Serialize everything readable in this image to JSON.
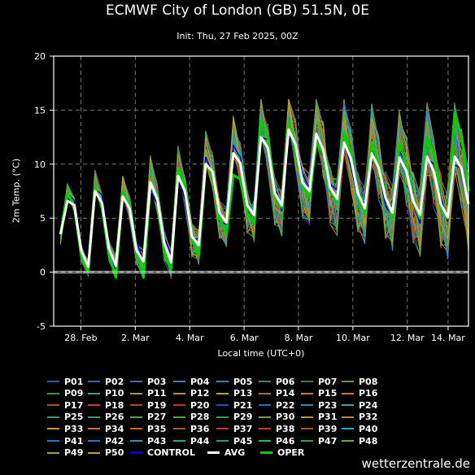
{
  "chart_data": {
    "type": "line",
    "title": "ECMWF City of London (GB) 51.5N, 0E",
    "subtitle": "Init: Thu, 27 Feb 2025, 00Z",
    "xlabel": "Local time (UTC+0)",
    "ylabel": "2m Temp. (°C)",
    "ylim": [
      -5,
      20
    ],
    "yticks": [
      -5,
      0,
      5,
      10,
      15,
      20
    ],
    "xlim_days": [
      0,
      15.25
    ],
    "x_unit": "days from Thu, 27 Feb 2025, 00Z",
    "xticks": [
      {
        "day": 1,
        "label": "28. Feb"
      },
      {
        "day": 3,
        "label": "2. Mar"
      },
      {
        "day": 5,
        "label": "4. Mar"
      },
      {
        "day": 7,
        "label": "6. Mar"
      },
      {
        "day": 9,
        "label": "8. Mar"
      },
      {
        "day": 11,
        "label": "10. Mar"
      },
      {
        "day": 13,
        "label": "12. Mar"
      },
      {
        "day": 14.5,
        "label": "14. Mar"
      }
    ],
    "grid": true,
    "zero_line": true,
    "series_names": [
      "P01",
      "P02",
      "P03",
      "P04",
      "P05",
      "P06",
      "P07",
      "P08",
      "P09",
      "P10",
      "P11",
      "P12",
      "P13",
      "P14",
      "P15",
      "P16",
      "P17",
      "P18",
      "P19",
      "P20",
      "P21",
      "P22",
      "P23",
      "P24",
      "P25",
      "P26",
      "P27",
      "P28",
      "P29",
      "P30",
      "P31",
      "P32",
      "P33",
      "P34",
      "P35",
      "P36",
      "P37",
      "P38",
      "P39",
      "P40",
      "P41",
      "P42",
      "P43",
      "P44",
      "P45",
      "P46",
      "P47",
      "P48",
      "P49",
      "P50",
      "CONTROL",
      "AVG",
      "OPER"
    ],
    "legend_colors": [
      "#1f5fa8",
      "#2f5fbf",
      "#3a6ac0",
      "#3d7fb8",
      "#2d8aa0",
      "#2d8f6a",
      "#1e8a3c",
      "#4aa63a",
      "#2e9a3a",
      "#3aa84c",
      "#a8a030",
      "#c09030",
      "#c8a020",
      "#b07020",
      "#d07a28",
      "#c87a30",
      "#b04a20",
      "#c0402a",
      "#b8402a",
      "#c02e2e",
      "#2a4ab8",
      "#2a6ab8",
      "#2a8ab0",
      "#3aa0b8",
      "#2aa070",
      "#30a060",
      "#40b040",
      "#50a838",
      "#30a050",
      "#80a030",
      "#a8a030",
      "#b09030",
      "#c0a020",
      "#c08018",
      "#b07028",
      "#a06030",
      "#b04040",
      "#c03a30",
      "#a05a3a",
      "#3aa0c0",
      "#2a7ac0",
      "#3a6ab8",
      "#3a8ab8",
      "#30a090",
      "#20a070",
      "#30b060",
      "#40a040",
      "#60b038",
      "#a0a030",
      "#c0a030",
      "#0000d0",
      "#ffffff",
      "#00d000"
    ],
    "avg": [
      3.5,
      6.6,
      6.2,
      2.0,
      0.5,
      7.5,
      6.4,
      2.2,
      0.6,
      7.0,
      5.9,
      2.0,
      1.0,
      8.3,
      6.8,
      2.7,
      0.9,
      8.9,
      7.5,
      3.3,
      2.5,
      10.0,
      9.3,
      5.5,
      4.6,
      11.0,
      10.1,
      6.2,
      5.3,
      12.5,
      11.5,
      7.3,
      6.2,
      13.2,
      11.8,
      8.3,
      7.5,
      12.8,
      11.3,
      7.8,
      6.8,
      12.0,
      10.5,
      7.3,
      5.9,
      11.0,
      9.7,
      6.9,
      5.5,
      10.6,
      9.4,
      6.6,
      5.3,
      10.7,
      9.3,
      6.3,
      5.1,
      10.7,
      9.6,
      6.3
    ],
    "oper": [
      3.5,
      7.4,
      6.0,
      1.5,
      0.0,
      7.9,
      6.0,
      1.6,
      -0.5,
      7.4,
      6.2,
      2.0,
      -0.5,
      8.0,
      7.0,
      2.0,
      0.3,
      9.6,
      8.0,
      3.0,
      1.5,
      10.0,
      9.0,
      5.0,
      3.5,
      9.0,
      8.6,
      5.5,
      4.5,
      14.0,
      12.5,
      7.0,
      6.0,
      13.8,
      11.0,
      8.0,
      7.0,
      12.0,
      11.0,
      7.5,
      6.5,
      13.0,
      11.0,
      7.0,
      5.5,
      12.0,
      10.0,
      7.0,
      5.0,
      12.0,
      10.0,
      6.5,
      5.0,
      12.5,
      11.0,
      6.0,
      5.0,
      14.8,
      12.5,
      7.5
    ]
  },
  "watermark": "wetterzentrale.de"
}
